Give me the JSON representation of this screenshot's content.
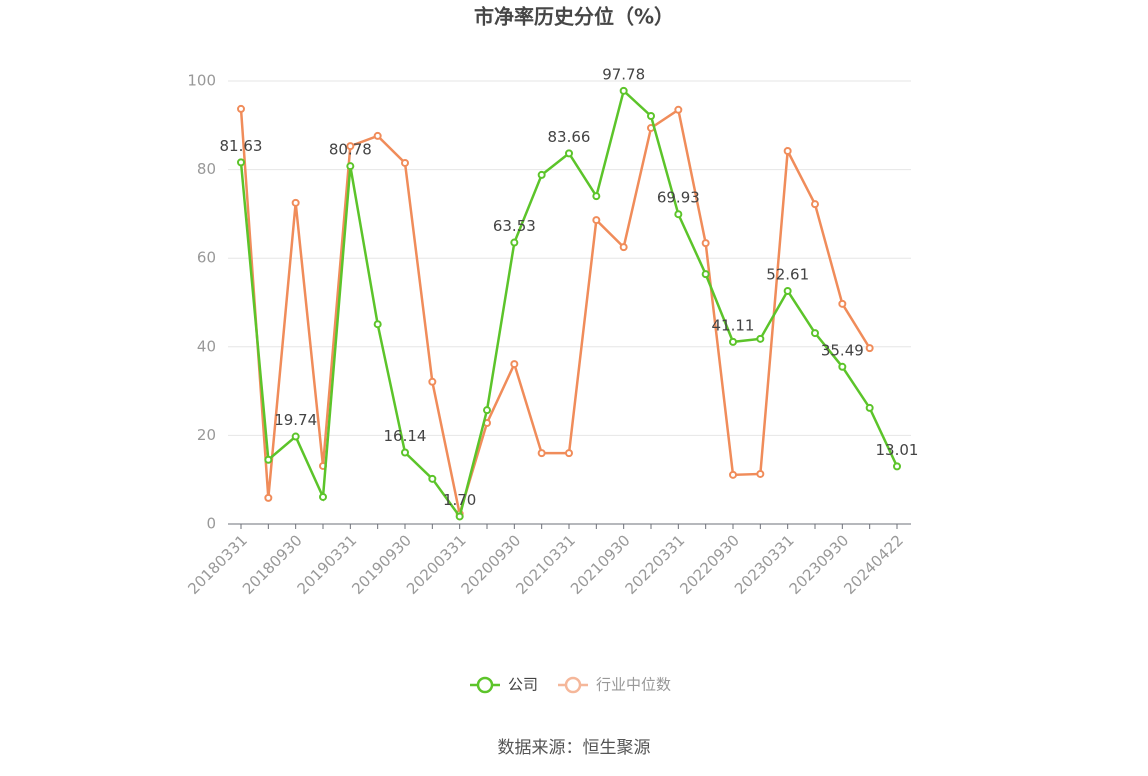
{
  "chart_data": {
    "type": "line",
    "title": "市净率历史分位（%）",
    "categories": [
      "20180331",
      null,
      "20180930",
      null,
      "20190331",
      null,
      "20190930",
      null,
      "20200331",
      null,
      "20200930",
      null,
      "20210331",
      null,
      "20210930",
      null,
      "20220331",
      null,
      "20220930",
      null,
      "20230331",
      null,
      "20230930",
      null,
      "20240422"
    ],
    "series": [
      {
        "name": "公司",
        "color": "#5cc42a",
        "values": [
          81.63,
          14.5,
          19.74,
          6.1,
          80.78,
          45.1,
          16.14,
          10.2,
          1.7,
          25.7,
          63.53,
          78.8,
          83.66,
          74.0,
          97.78,
          92.1,
          69.93,
          56.4,
          41.11,
          41.8,
          52.61,
          43.1,
          35.49,
          26.2,
          13.01
        ],
        "value_labels": [
          "81.63",
          null,
          "19.74",
          null,
          "80.78",
          null,
          "16.14",
          null,
          "1.70",
          null,
          "63.53",
          null,
          "83.66",
          null,
          "97.78",
          null,
          "69.93",
          null,
          "41.11",
          null,
          "52.61",
          null,
          "35.49",
          null,
          "13.01"
        ]
      },
      {
        "name": "行业中位数",
        "color": "#f08c5a",
        "values": [
          93.7,
          5.9,
          72.5,
          13.1,
          85.3,
          87.6,
          81.5,
          32.1,
          2.3,
          22.8,
          36.1,
          16.0,
          16.0,
          68.6,
          62.5,
          89.4,
          93.5,
          63.4,
          11.1,
          11.3,
          84.2,
          72.2,
          49.7,
          39.7,
          null
        ]
      }
    ],
    "ylim": [
      0,
      100
    ],
    "yticks": [
      0,
      20,
      40,
      60,
      80,
      100
    ],
    "grid": true,
    "source": "数据来源：恒生聚源"
  }
}
